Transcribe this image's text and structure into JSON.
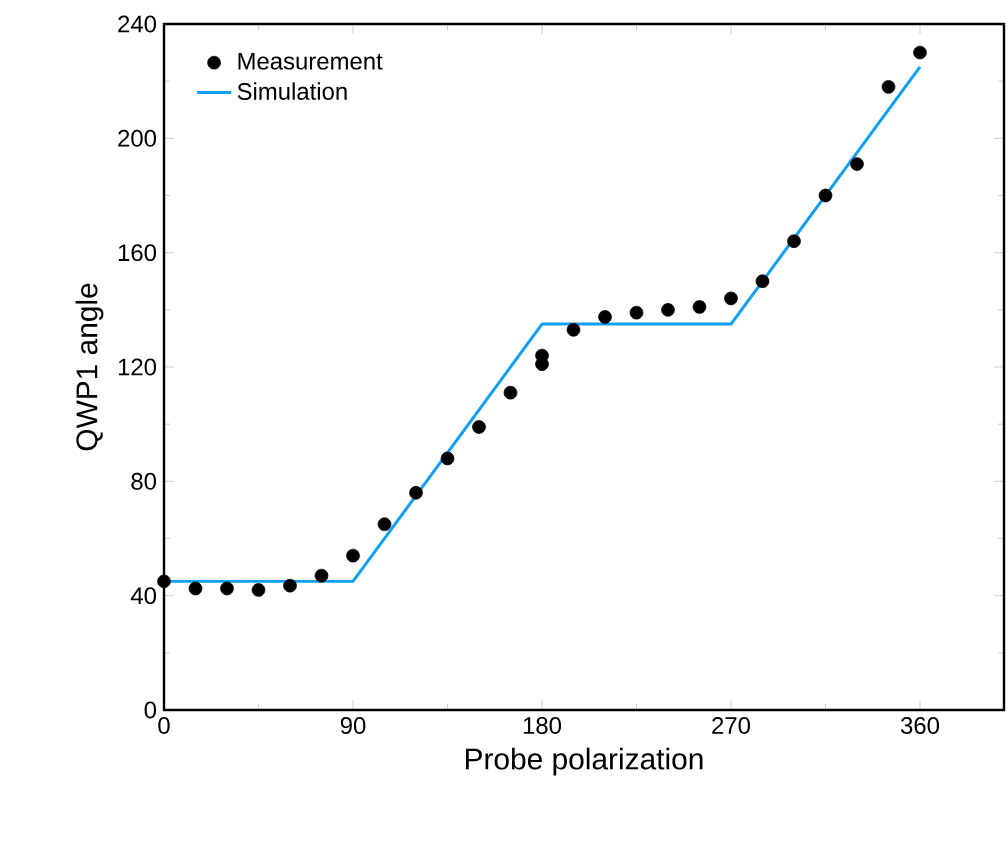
{
  "chart_data": {
    "type": "scatter",
    "xlabel": "Probe polarization",
    "ylabel": "QWP1 angle",
    "xlim": [
      0,
      400
    ],
    "xticks": [
      0,
      90,
      180,
      270,
      360
    ],
    "ylim": [
      0,
      240
    ],
    "yticks": [
      0,
      40,
      80,
      120,
      160,
      200,
      240
    ],
    "legend": "top left",
    "grid": false,
    "series": [
      {
        "name": "Measurement",
        "marker": "circle",
        "color": "#000000",
        "x": [
          0,
          15,
          30,
          45,
          60,
          75,
          90,
          105,
          120,
          135,
          150,
          165,
          180,
          180,
          195,
          210,
          225,
          240,
          255,
          270,
          285,
          300,
          315,
          330,
          345,
          360
        ],
        "values": [
          45,
          42.5,
          42.5,
          42,
          43.5,
          47,
          54,
          65,
          76,
          88,
          99,
          111,
          121,
          124,
          133,
          137.5,
          139,
          140,
          141,
          144,
          150,
          164,
          180,
          191,
          218,
          230
        ]
      },
      {
        "name": "Simulation",
        "type": "line",
        "marker": "none",
        "line_style": "solid",
        "color": "#0f9ff0",
        "x": [
          0,
          90,
          180,
          270,
          360
        ],
        "values": [
          45,
          45,
          135,
          135,
          225
        ]
      }
    ]
  }
}
